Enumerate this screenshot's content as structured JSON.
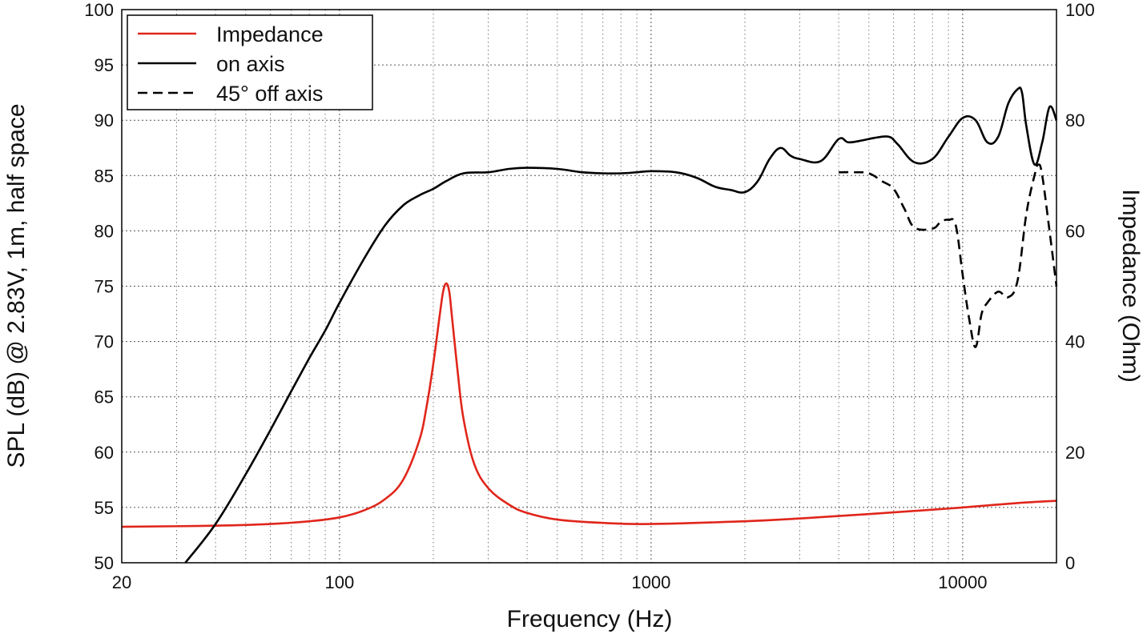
{
  "chart_data": {
    "type": "line",
    "xlabel": "Frequency (Hz)",
    "ylabel": "SPL (dB) @ 2.83V, 1m, half space",
    "y2label": "Impedance (Ohm)",
    "xscale": "log",
    "xlim": [
      20,
      20000
    ],
    "ylim": [
      50,
      100
    ],
    "y2lim": [
      0,
      100
    ],
    "grid": true,
    "legend_position": "top-left",
    "x_ticks": [
      {
        "value": 20,
        "label": "20"
      },
      {
        "value": 100,
        "label": "100"
      },
      {
        "value": 1000,
        "label": "1000"
      },
      {
        "value": 10000,
        "label": "10000"
      }
    ],
    "y_ticks": [
      {
        "value": 50,
        "label": "50"
      },
      {
        "value": 55,
        "label": "55"
      },
      {
        "value": 60,
        "label": "60"
      },
      {
        "value": 65,
        "label": "65"
      },
      {
        "value": 70,
        "label": "70"
      },
      {
        "value": 75,
        "label": "75"
      },
      {
        "value": 80,
        "label": "80"
      },
      {
        "value": 85,
        "label": "85"
      },
      {
        "value": 90,
        "label": "90"
      },
      {
        "value": 95,
        "label": "95"
      },
      {
        "value": 100,
        "label": "100"
      }
    ],
    "y2_ticks": [
      {
        "value": 0,
        "label": "0"
      },
      {
        "value": 20,
        "label": "20"
      },
      {
        "value": 40,
        "label": "40"
      },
      {
        "value": 60,
        "label": "60"
      },
      {
        "value": 80,
        "label": "80"
      },
      {
        "value": 100,
        "label": "100"
      }
    ],
    "series": [
      {
        "name": "Impedance",
        "axis": "right",
        "color": "#e0261b",
        "style": "solid",
        "x": [
          20,
          40,
          60,
          80,
          100,
          120,
          140,
          160,
          180,
          190,
          200,
          210,
          215,
          220,
          225,
          230,
          240,
          250,
          270,
          300,
          350,
          400,
          500,
          700,
          1000,
          2000,
          3000,
          5000,
          8000,
          10000,
          15000,
          20000
        ],
        "y": [
          6.5,
          6.7,
          7.0,
          7.5,
          8.2,
          9.5,
          11.5,
          15.0,
          22.0,
          28.0,
          36.0,
          45.0,
          49.0,
          50.5,
          49.0,
          44.0,
          34.0,
          26.0,
          18.0,
          13.5,
          10.5,
          9.0,
          7.8,
          7.2,
          7.0,
          7.5,
          8.0,
          8.8,
          9.6,
          10.0,
          10.8,
          11.2
        ]
      },
      {
        "name": "on axis",
        "axis": "left",
        "color": "#000000",
        "style": "solid",
        "x": [
          32,
          40,
          50,
          60,
          70,
          80,
          90,
          100,
          120,
          140,
          160,
          180,
          200,
          220,
          250,
          300,
          350,
          400,
          500,
          600,
          700,
          800,
          900,
          1000,
          1200,
          1400,
          1600,
          1800,
          2000,
          2200,
          2400,
          2600,
          2800,
          3000,
          3500,
          4000,
          4300,
          4800,
          5200,
          5800,
          6200,
          7000,
          8000,
          9000,
          10000,
          11000,
          12000,
          13000,
          14000,
          15000,
          15500,
          16000,
          17000,
          18000,
          19000,
          20000
        ],
        "y": [
          50,
          53.5,
          58.0,
          62.0,
          65.5,
          68.5,
          71.0,
          73.5,
          77.5,
          80.5,
          82.3,
          83.2,
          83.8,
          84.5,
          85.2,
          85.3,
          85.6,
          85.7,
          85.6,
          85.3,
          85.2,
          85.2,
          85.3,
          85.4,
          85.3,
          84.8,
          84.0,
          83.7,
          83.5,
          84.5,
          86.5,
          87.5,
          86.8,
          86.5,
          86.3,
          88.3,
          88.0,
          88.2,
          88.4,
          88.5,
          87.8,
          86.2,
          86.5,
          88.5,
          90.2,
          90.0,
          88.0,
          88.5,
          91.5,
          92.8,
          92.5,
          89.5,
          86.0,
          88.0,
          91.2,
          90.0
        ]
      },
      {
        "name": "45° off axis",
        "axis": "left",
        "color": "#000000",
        "style": "dashed",
        "x": [
          4000,
          4500,
          5000,
          5500,
          6000,
          6500,
          7000,
          8000,
          8500,
          9000,
          9500,
          10000,
          10500,
          11000,
          11500,
          12000,
          13000,
          14000,
          15000,
          16000,
          17000,
          17500,
          18000,
          19000,
          20000
        ],
        "y": [
          85.3,
          85.3,
          85.2,
          84.5,
          83.8,
          82.0,
          80.3,
          80.2,
          80.8,
          81.0,
          80.5,
          76.0,
          72.0,
          69.5,
          72.5,
          73.5,
          74.5,
          74.0,
          75.5,
          81.5,
          85.0,
          86.0,
          85.0,
          80.0,
          75.0
        ]
      }
    ]
  }
}
